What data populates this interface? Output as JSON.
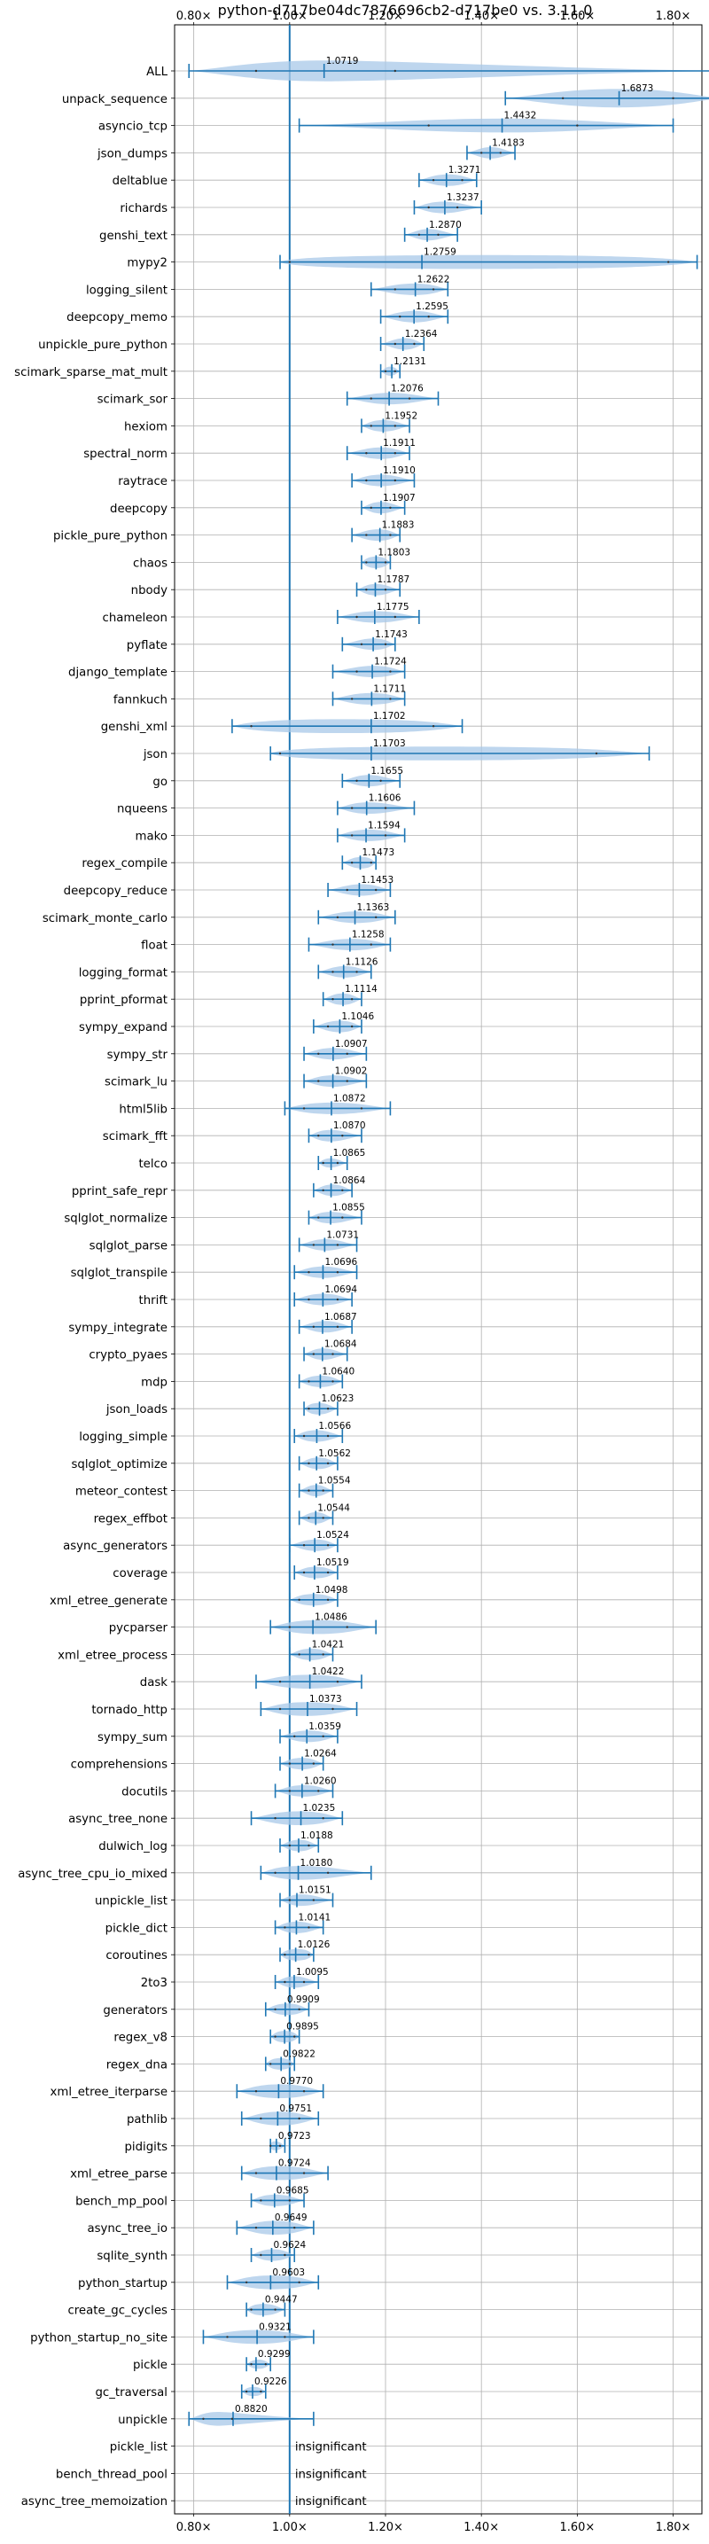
{
  "chart_data": {
    "type": "violin",
    "title": "python-d717be04dc7876696cb2-d717be0 vs. 3.11.0",
    "x_scale": "linear",
    "xlim": [
      0.76,
      1.86
    ],
    "x_ticks": [
      0.8,
      1.0,
      1.2,
      1.4,
      1.6,
      1.8
    ],
    "x_tick_labels": [
      "0.80×",
      "1.00×",
      "1.20×",
      "1.40×",
      "1.60×",
      "1.80×"
    ],
    "reference_line": 1.0,
    "grid": true,
    "colors": {
      "violin": "#a8c8e8",
      "stroke": "#1f77b4",
      "grid": "#b0b0b0"
    },
    "insignificant_label": "insignificant",
    "benchmarks": [
      {
        "name": "ALL",
        "label": "1.0719",
        "min": 0.79,
        "max": 1.9,
        "q1": 0.93,
        "q3": 1.22,
        "spread": 0.9
      },
      {
        "name": "unpack_sequence",
        "label": "1.6873",
        "min": 1.45,
        "max": 1.9,
        "q1": 1.57,
        "q3": 1.8,
        "spread": 0.8
      },
      {
        "name": "asyncio_tcp",
        "label": "1.4432",
        "min": 1.02,
        "max": 1.8,
        "q1": 1.29,
        "q3": 1.6,
        "spread": 0.6
      },
      {
        "name": "json_dumps",
        "label": "1.4183",
        "min": 1.37,
        "max": 1.47,
        "q1": 1.4,
        "q3": 1.44,
        "spread": 0.5
      },
      {
        "name": "deltablue",
        "label": "1.3271",
        "min": 1.27,
        "max": 1.39,
        "q1": 1.3,
        "q3": 1.36,
        "spread": 0.5
      },
      {
        "name": "richards",
        "label": "1.3237",
        "min": 1.26,
        "max": 1.4,
        "q1": 1.29,
        "q3": 1.35,
        "spread": 0.5
      },
      {
        "name": "genshi_text",
        "label": "1.2870",
        "min": 1.24,
        "max": 1.35,
        "q1": 1.27,
        "q3": 1.31,
        "spread": 0.5
      },
      {
        "name": "mypy2",
        "label": "1.2759",
        "min": 0.98,
        "max": 1.85,
        "q1": 1.0,
        "q3": 1.79,
        "spread": 0.6
      },
      {
        "name": "logging_silent",
        "label": "1.2622",
        "min": 1.17,
        "max": 1.33,
        "q1": 1.22,
        "q3": 1.3,
        "spread": 0.5
      },
      {
        "name": "deepcopy_memo",
        "label": "1.2595",
        "min": 1.19,
        "max": 1.33,
        "q1": 1.23,
        "q3": 1.29,
        "spread": 0.5
      },
      {
        "name": "unpickle_pure_python",
        "label": "1.2364",
        "min": 1.19,
        "max": 1.28,
        "q1": 1.22,
        "q3": 1.26,
        "spread": 0.5
      },
      {
        "name": "scimark_sparse_mat_mult",
        "label": "1.2131",
        "min": 1.19,
        "max": 1.23,
        "q1": 1.2,
        "q3": 1.22,
        "spread": 0.4
      },
      {
        "name": "scimark_sor",
        "label": "1.2076",
        "min": 1.12,
        "max": 1.31,
        "q1": 1.17,
        "q3": 1.25,
        "spread": 0.5
      },
      {
        "name": "hexiom",
        "label": "1.1952",
        "min": 1.15,
        "max": 1.25,
        "q1": 1.17,
        "q3": 1.22,
        "spread": 0.5
      },
      {
        "name": "spectral_norm",
        "label": "1.1911",
        "min": 1.12,
        "max": 1.25,
        "q1": 1.16,
        "q3": 1.22,
        "spread": 0.5
      },
      {
        "name": "raytrace",
        "label": "1.1910",
        "min": 1.13,
        "max": 1.26,
        "q1": 1.16,
        "q3": 1.22,
        "spread": 0.5
      },
      {
        "name": "deepcopy",
        "label": "1.1907",
        "min": 1.15,
        "max": 1.24,
        "q1": 1.17,
        "q3": 1.21,
        "spread": 0.5
      },
      {
        "name": "pickle_pure_python",
        "label": "1.1883",
        "min": 1.13,
        "max": 1.23,
        "q1": 1.16,
        "q3": 1.21,
        "spread": 0.5
      },
      {
        "name": "chaos",
        "label": "1.1803",
        "min": 1.15,
        "max": 1.21,
        "q1": 1.16,
        "q3": 1.2,
        "spread": 0.5
      },
      {
        "name": "nbody",
        "label": "1.1787",
        "min": 1.14,
        "max": 1.23,
        "q1": 1.16,
        "q3": 1.2,
        "spread": 0.5
      },
      {
        "name": "chameleon",
        "label": "1.1775",
        "min": 1.1,
        "max": 1.27,
        "q1": 1.14,
        "q3": 1.22,
        "spread": 0.5
      },
      {
        "name": "pyflate",
        "label": "1.1743",
        "min": 1.11,
        "max": 1.22,
        "q1": 1.15,
        "q3": 1.2,
        "spread": 0.5
      },
      {
        "name": "django_template",
        "label": "1.1724",
        "min": 1.09,
        "max": 1.24,
        "q1": 1.14,
        "q3": 1.21,
        "spread": 0.5
      },
      {
        "name": "fannkuch",
        "label": "1.1711",
        "min": 1.09,
        "max": 1.24,
        "q1": 1.13,
        "q3": 1.21,
        "spread": 0.5
      },
      {
        "name": "genshi_xml",
        "label": "1.1702",
        "min": 0.88,
        "max": 1.36,
        "q1": 0.92,
        "q3": 1.3,
        "spread": 0.6
      },
      {
        "name": "json",
        "label": "1.1703",
        "min": 0.96,
        "max": 1.75,
        "q1": 0.98,
        "q3": 1.64,
        "spread": 0.6
      },
      {
        "name": "go",
        "label": "1.1655",
        "min": 1.11,
        "max": 1.23,
        "q1": 1.14,
        "q3": 1.19,
        "spread": 0.5
      },
      {
        "name": "nqueens",
        "label": "1.1606",
        "min": 1.1,
        "max": 1.26,
        "q1": 1.13,
        "q3": 1.2,
        "spread": 0.5
      },
      {
        "name": "mako",
        "label": "1.1594",
        "min": 1.1,
        "max": 1.24,
        "q1": 1.13,
        "q3": 1.2,
        "spread": 0.5
      },
      {
        "name": "regex_compile",
        "label": "1.1473",
        "min": 1.11,
        "max": 1.18,
        "q1": 1.13,
        "q3": 1.17,
        "spread": 0.5
      },
      {
        "name": "deepcopy_reduce",
        "label": "1.1453",
        "min": 1.08,
        "max": 1.21,
        "q1": 1.12,
        "q3": 1.18,
        "spread": 0.5
      },
      {
        "name": "scimark_monte_carlo",
        "label": "1.1363",
        "min": 1.06,
        "max": 1.22,
        "q1": 1.1,
        "q3": 1.18,
        "spread": 0.5
      },
      {
        "name": "float",
        "label": "1.1258",
        "min": 1.04,
        "max": 1.21,
        "q1": 1.09,
        "q3": 1.17,
        "spread": 0.5
      },
      {
        "name": "logging_format",
        "label": "1.1126",
        "min": 1.06,
        "max": 1.17,
        "q1": 1.09,
        "q3": 1.14,
        "spread": 0.5
      },
      {
        "name": "pprint_pformat",
        "label": "1.1114",
        "min": 1.07,
        "max": 1.15,
        "q1": 1.09,
        "q3": 1.13,
        "spread": 0.5
      },
      {
        "name": "sympy_expand",
        "label": "1.1046",
        "min": 1.05,
        "max": 1.15,
        "q1": 1.08,
        "q3": 1.13,
        "spread": 0.5
      },
      {
        "name": "sympy_str",
        "label": "1.0907",
        "min": 1.03,
        "max": 1.16,
        "q1": 1.06,
        "q3": 1.12,
        "spread": 0.5
      },
      {
        "name": "scimark_lu",
        "label": "1.0902",
        "min": 1.03,
        "max": 1.16,
        "q1": 1.06,
        "q3": 1.12,
        "spread": 0.5
      },
      {
        "name": "html5lib",
        "label": "1.0872",
        "min": 0.99,
        "max": 1.21,
        "q1": 1.03,
        "q3": 1.15,
        "spread": 0.5
      },
      {
        "name": "scimark_fft",
        "label": "1.0870",
        "min": 1.04,
        "max": 1.15,
        "q1": 1.06,
        "q3": 1.11,
        "spread": 0.5
      },
      {
        "name": "telco",
        "label": "1.0865",
        "min": 1.06,
        "max": 1.12,
        "q1": 1.07,
        "q3": 1.1,
        "spread": 0.4
      },
      {
        "name": "pprint_safe_repr",
        "label": "1.0864",
        "min": 1.05,
        "max": 1.13,
        "q1": 1.07,
        "q3": 1.11,
        "spread": 0.5
      },
      {
        "name": "sqlglot_normalize",
        "label": "1.0855",
        "min": 1.04,
        "max": 1.15,
        "q1": 1.06,
        "q3": 1.11,
        "spread": 0.5
      },
      {
        "name": "sqlglot_parse",
        "label": "1.0731",
        "min": 1.02,
        "max": 1.14,
        "q1": 1.05,
        "q3": 1.1,
        "spread": 0.5
      },
      {
        "name": "sqlglot_transpile",
        "label": "1.0696",
        "min": 1.01,
        "max": 1.14,
        "q1": 1.04,
        "q3": 1.1,
        "spread": 0.5
      },
      {
        "name": "thrift",
        "label": "1.0694",
        "min": 1.01,
        "max": 1.13,
        "q1": 1.04,
        "q3": 1.1,
        "spread": 0.5
      },
      {
        "name": "sympy_integrate",
        "label": "1.0687",
        "min": 1.02,
        "max": 1.13,
        "q1": 1.05,
        "q3": 1.1,
        "spread": 0.5
      },
      {
        "name": "crypto_pyaes",
        "label": "1.0684",
        "min": 1.03,
        "max": 1.12,
        "q1": 1.05,
        "q3": 1.09,
        "spread": 0.5
      },
      {
        "name": "mdp",
        "label": "1.0640",
        "min": 1.02,
        "max": 1.11,
        "q1": 1.04,
        "q3": 1.09,
        "spread": 0.5
      },
      {
        "name": "json_loads",
        "label": "1.0623",
        "min": 1.03,
        "max": 1.1,
        "q1": 1.04,
        "q3": 1.08,
        "spread": 0.5
      },
      {
        "name": "logging_simple",
        "label": "1.0566",
        "min": 1.01,
        "max": 1.11,
        "q1": 1.03,
        "q3": 1.08,
        "spread": 0.5
      },
      {
        "name": "sqlglot_optimize",
        "label": "1.0562",
        "min": 1.02,
        "max": 1.1,
        "q1": 1.04,
        "q3": 1.08,
        "spread": 0.5
      },
      {
        "name": "meteor_contest",
        "label": "1.0554",
        "min": 1.02,
        "max": 1.09,
        "q1": 1.04,
        "q3": 1.07,
        "spread": 0.5
      },
      {
        "name": "regex_effbot",
        "label": "1.0544",
        "min": 1.02,
        "max": 1.09,
        "q1": 1.04,
        "q3": 1.07,
        "spread": 0.5
      },
      {
        "name": "async_generators",
        "label": "1.0524",
        "min": 1.0,
        "max": 1.1,
        "q1": 1.03,
        "q3": 1.08,
        "spread": 0.5
      },
      {
        "name": "coverage",
        "label": "1.0519",
        "min": 1.01,
        "max": 1.1,
        "q1": 1.03,
        "q3": 1.08,
        "spread": 0.5
      },
      {
        "name": "xml_etree_generate",
        "label": "1.0498",
        "min": 1.0,
        "max": 1.1,
        "q1": 1.02,
        "q3": 1.08,
        "spread": 0.5
      },
      {
        "name": "pycparser",
        "label": "1.0486",
        "min": 0.96,
        "max": 1.18,
        "q1": 1.0,
        "q3": 1.12,
        "spread": 0.6
      },
      {
        "name": "xml_etree_process",
        "label": "1.0421",
        "min": 1.0,
        "max": 1.09,
        "q1": 1.02,
        "q3": 1.07,
        "spread": 0.5
      },
      {
        "name": "dask",
        "label": "1.0422",
        "min": 0.93,
        "max": 1.15,
        "q1": 0.98,
        "q3": 1.1,
        "spread": 0.6
      },
      {
        "name": "tornado_http",
        "label": "1.0373",
        "min": 0.94,
        "max": 1.14,
        "q1": 0.98,
        "q3": 1.09,
        "spread": 0.6
      },
      {
        "name": "sympy_sum",
        "label": "1.0359",
        "min": 0.98,
        "max": 1.1,
        "q1": 1.01,
        "q3": 1.07,
        "spread": 0.5
      },
      {
        "name": "comprehensions",
        "label": "1.0264",
        "min": 0.98,
        "max": 1.07,
        "q1": 1.0,
        "q3": 1.05,
        "spread": 0.5
      },
      {
        "name": "docutils",
        "label": "1.0260",
        "min": 0.97,
        "max": 1.09,
        "q1": 1.0,
        "q3": 1.06,
        "spread": 0.5
      },
      {
        "name": "async_tree_none",
        "label": "1.0235",
        "min": 0.92,
        "max": 1.11,
        "q1": 0.97,
        "q3": 1.07,
        "spread": 0.6
      },
      {
        "name": "dulwich_log",
        "label": "1.0188",
        "min": 0.98,
        "max": 1.06,
        "q1": 1.0,
        "q3": 1.04,
        "spread": 0.5
      },
      {
        "name": "async_tree_cpu_io_mixed",
        "label": "1.0180",
        "min": 0.94,
        "max": 1.17,
        "q1": 0.97,
        "q3": 1.08,
        "spread": 0.6
      },
      {
        "name": "unpickle_list",
        "label": "1.0151",
        "min": 0.98,
        "max": 1.09,
        "q1": 1.0,
        "q3": 1.05,
        "spread": 0.5
      },
      {
        "name": "pickle_dict",
        "label": "1.0141",
        "min": 0.97,
        "max": 1.07,
        "q1": 0.99,
        "q3": 1.04,
        "spread": 0.5
      },
      {
        "name": "coroutines",
        "label": "1.0126",
        "min": 0.98,
        "max": 1.05,
        "q1": 0.99,
        "q3": 1.04,
        "spread": 0.5
      },
      {
        "name": "2to3",
        "label": "1.0095",
        "min": 0.97,
        "max": 1.06,
        "q1": 0.99,
        "q3": 1.03,
        "spread": 0.5
      },
      {
        "name": "generators",
        "label": "0.9909",
        "min": 0.95,
        "max": 1.04,
        "q1": 0.97,
        "q3": 1.02,
        "spread": 0.5
      },
      {
        "name": "regex_v8",
        "label": "0.9895",
        "min": 0.96,
        "max": 1.02,
        "q1": 0.97,
        "q3": 1.01,
        "spread": 0.5
      },
      {
        "name": "regex_dna",
        "label": "0.9822",
        "min": 0.95,
        "max": 1.01,
        "q1": 0.96,
        "q3": 1.0,
        "spread": 0.5
      },
      {
        "name": "xml_etree_iterparse",
        "label": "0.9770",
        "min": 0.89,
        "max": 1.07,
        "q1": 0.93,
        "q3": 1.03,
        "spread": 0.6
      },
      {
        "name": "pathlib",
        "label": "0.9751",
        "min": 0.9,
        "max": 1.06,
        "q1": 0.94,
        "q3": 1.02,
        "spread": 0.6
      },
      {
        "name": "pidigits",
        "label": "0.9723",
        "min": 0.96,
        "max": 0.99,
        "q1": 0.96,
        "q3": 0.98,
        "spread": 0.4
      },
      {
        "name": "xml_etree_parse",
        "label": "0.9724",
        "min": 0.9,
        "max": 1.08,
        "q1": 0.93,
        "q3": 1.03,
        "spread": 0.6
      },
      {
        "name": "bench_mp_pool",
        "label": "0.9685",
        "min": 0.92,
        "max": 1.03,
        "q1": 0.94,
        "q3": 1.0,
        "spread": 0.5
      },
      {
        "name": "async_tree_io",
        "label": "0.9649",
        "min": 0.89,
        "max": 1.05,
        "q1": 0.93,
        "q3": 1.01,
        "spread": 0.6
      },
      {
        "name": "sqlite_synth",
        "label": "0.9624",
        "min": 0.92,
        "max": 1.01,
        "q1": 0.94,
        "q3": 0.99,
        "spread": 0.5
      },
      {
        "name": "python_startup",
        "label": "0.9603",
        "min": 0.87,
        "max": 1.06,
        "q1": 0.91,
        "q3": 1.02,
        "spread": 0.6
      },
      {
        "name": "create_gc_cycles",
        "label": "0.9447",
        "min": 0.91,
        "max": 0.99,
        "q1": 0.92,
        "q3": 0.97,
        "spread": 0.5
      },
      {
        "name": "python_startup_no_site",
        "label": "0.9321",
        "min": 0.82,
        "max": 1.05,
        "q1": 0.87,
        "q3": 0.99,
        "spread": 0.6
      },
      {
        "name": "pickle",
        "label": "0.9299",
        "min": 0.91,
        "max": 0.96,
        "q1": 0.92,
        "q3": 0.95,
        "spread": 0.4
      },
      {
        "name": "gc_traversal",
        "label": "0.9226",
        "min": 0.9,
        "max": 0.95,
        "q1": 0.91,
        "q3": 0.94,
        "spread": 0.4
      },
      {
        "name": "unpickle",
        "label": "0.8820",
        "min": 0.79,
        "max": 1.05,
        "q1": 0.82,
        "q3": 0.88,
        "spread": 0.6
      },
      {
        "name": "pickle_list",
        "label": "",
        "insignificant": true
      },
      {
        "name": "bench_thread_pool",
        "label": "",
        "insignificant": true
      },
      {
        "name": "async_tree_memoization",
        "label": "",
        "insignificant": true
      }
    ]
  }
}
